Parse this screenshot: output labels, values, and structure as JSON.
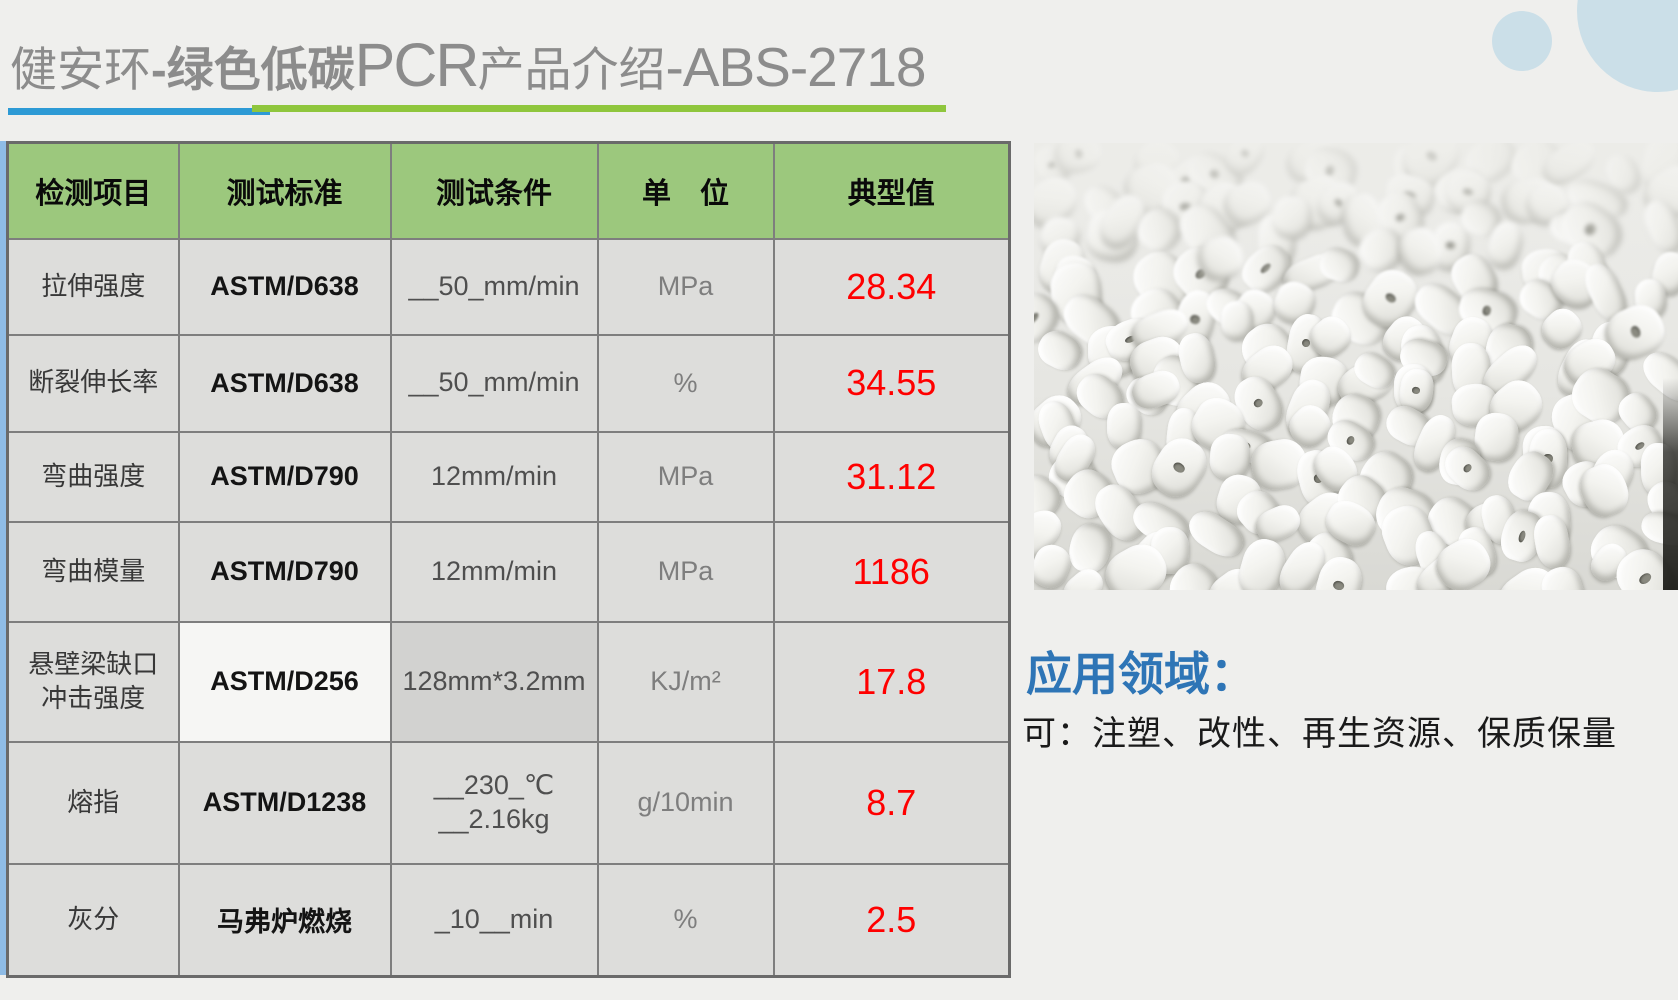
{
  "slide": {
    "title": {
      "brand": "健安环",
      "highlight": "-绿色低碳",
      "acronym": "PCR",
      "suffix": "产品介绍",
      "model": "-ABS-2718"
    },
    "table": {
      "headers": [
        "检测项目",
        "测试标准",
        "测试条件",
        "单　位",
        "典型值"
      ],
      "rows": [
        {
          "item": "拉伸强度",
          "standard": "ASTM/D638",
          "condition": "__50_mm/min",
          "unit": "MPa",
          "value": "28.34"
        },
        {
          "item": "断裂伸长率",
          "standard": "ASTM/D638",
          "condition": "__50_mm/min",
          "unit": "%",
          "value": "34.55"
        },
        {
          "item": "弯曲强度",
          "standard": "ASTM/D790",
          "condition": "12mm/min",
          "unit": "MPa",
          "value": "31.12"
        },
        {
          "item": "弯曲模量",
          "standard": "ASTM/D790",
          "condition": "12mm/min",
          "unit": "MPa",
          "value": "1186"
        },
        {
          "item": "悬壁梁缺口\n冲击强度",
          "standard": "ASTM/D256",
          "condition": "128mm*3.2mm",
          "unit": "KJ/m²",
          "value": "17.8"
        },
        {
          "item": "熔指",
          "standard": "ASTM/D1238",
          "condition": "__230_℃\n__2.16kg",
          "unit": "g/10min",
          "value": "8.7"
        },
        {
          "item": "灰分",
          "standard": "马弗炉燃烧",
          "condition": "_10__min",
          "unit": "%",
          "value": "2.5"
        }
      ]
    },
    "application": {
      "heading": "应用领域：",
      "content": "可：注塑、改性、再生资源、保质保量"
    },
    "photo": {
      "description": "white-recycled-abs-plastic-pellets-photo"
    },
    "colors": {
      "header_green": "#9CC87D",
      "value_red": "#FF0000",
      "title_underline_blue": "#2D9AD5",
      "title_underline_green": "#8FC63D",
      "app_heading_blue": "#2E75B6",
      "title_gray": "#8C8C8C",
      "table_left_accent_blue": "#8FBCE6"
    }
  }
}
